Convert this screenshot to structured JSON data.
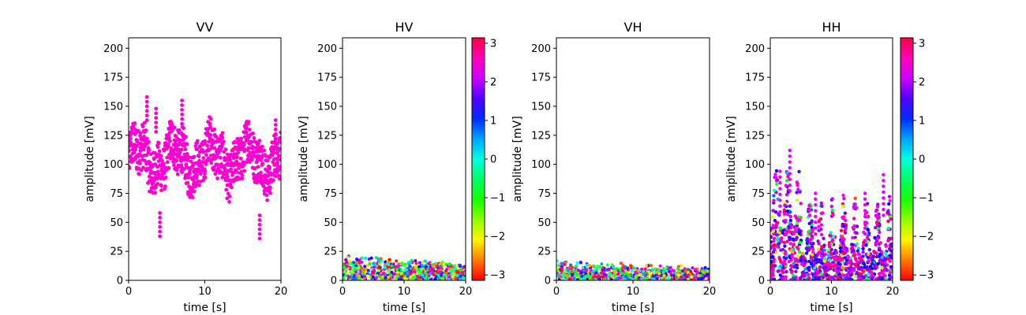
{
  "chart_data": [
    {
      "type": "scatter",
      "title": "VV",
      "xlabel": "time [s]",
      "ylabel": "amplitude [mV]",
      "xlim": [
        0,
        20
      ],
      "ylim": [
        0,
        209
      ],
      "xticks": [
        0,
        10,
        20
      ],
      "yticks": [
        0,
        25,
        50,
        75,
        100,
        125,
        150,
        175,
        200
      ],
      "colorbar": false,
      "series": [
        {
          "color_phase": 2.5,
          "baseline": 105,
          "spread": 20,
          "spikes": [
            [
              2.4,
              158
            ],
            [
              3.6,
              148
            ],
            [
              7.0,
              155
            ],
            [
              4.1,
              58
            ],
            [
              17.2,
              56
            ],
            [
              19.3,
              138
            ]
          ]
        }
      ]
    },
    {
      "type": "scatter",
      "title": "HV",
      "xlabel": "time [s]",
      "ylabel": "amplitude [mV]",
      "xlim": [
        0,
        20
      ],
      "ylim": [
        0,
        209
      ],
      "xticks": [
        0,
        10,
        20
      ],
      "yticks": [
        0,
        25,
        50,
        75,
        100,
        125,
        150,
        175,
        200
      ],
      "colorbar": true,
      "series": [
        {
          "max_amplitude": 22,
          "phase_range": [
            -3.14,
            3.14
          ]
        }
      ]
    },
    {
      "type": "scatter",
      "title": "VH",
      "xlabel": "time [s]",
      "ylabel": "amplitude [mV]",
      "xlim": [
        0,
        20
      ],
      "ylim": [
        0,
        209
      ],
      "xticks": [
        0,
        10,
        20
      ],
      "yticks": [
        0,
        25,
        50,
        75,
        100,
        125,
        150,
        175,
        200
      ],
      "colorbar": false,
      "series": [
        {
          "max_amplitude": 18,
          "phase_range": [
            -3.14,
            3.14
          ]
        }
      ]
    },
    {
      "type": "scatter",
      "title": "HH",
      "xlabel": "time [s]",
      "ylabel": "amplitude [mV]",
      "xlim": [
        0,
        20
      ],
      "ylim": [
        0,
        209
      ],
      "xticks": [
        0,
        10,
        20
      ],
      "yticks": [
        0,
        25,
        50,
        75,
        100,
        125,
        150,
        175,
        200
      ],
      "colorbar": true,
      "series": [
        {
          "max_amplitude": 112,
          "phase_range": [
            -3.14,
            3.14
          ],
          "spikes": [
            [
              3.2,
              112
            ],
            [
              1.6,
              94
            ],
            [
              18.5,
              91
            ],
            [
              15.5,
              75
            ],
            [
              7.4,
              75
            ]
          ]
        }
      ]
    }
  ],
  "colorbar": {
    "min": -3.14,
    "max": 3.14,
    "ticks": [
      -3,
      -2,
      -1,
      0,
      1,
      2,
      3
    ],
    "tick_labels": [
      "−3",
      "−2",
      "−1",
      "0",
      "1",
      "2",
      "3"
    ],
    "colormap": "hsv"
  }
}
